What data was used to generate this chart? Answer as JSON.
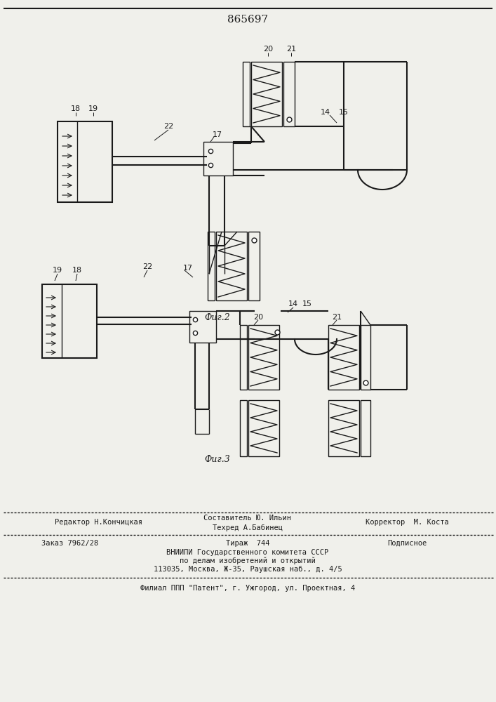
{
  "patent_number": "865697",
  "fig2_label": "Фиг.2",
  "fig3_label": "Фиг.3",
  "footer_line1_left": "Редактор Н.Кончицкая",
  "footer_line1_center1": "Составитель Ю. Ильин",
  "footer_line1_center2": "Техред А.Бабинец",
  "footer_line1_right": "Корректор  М. Коста",
  "footer_line2_col1": "Заказ 7962/28",
  "footer_line2_col2": "Тираж  744",
  "footer_line2_col3": "Подписное",
  "footer_line3": "ВНИИПИ Государственного комитета СССР",
  "footer_line4": "по делам изобретений и открытий",
  "footer_line5": "113035, Москва, Ж-35, Раушская наб., д. 4/5",
  "footer_line6": "Филиал ППП \"Патент\", г. Ужгород, ул. Проектная, 4",
  "bg_color": "#f0f0eb",
  "line_color": "#1a1a1a",
  "font_size_patent": 11,
  "font_size_fig": 9,
  "font_size_footer": 7.0,
  "font_size_num": 8
}
